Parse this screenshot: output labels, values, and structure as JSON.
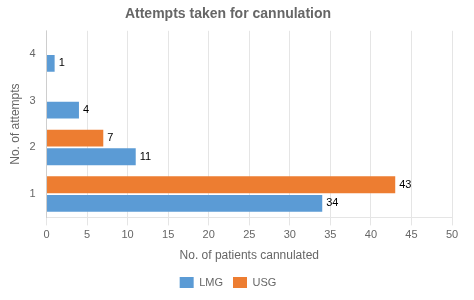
{
  "chart_data": {
    "type": "bar",
    "orientation": "horizontal",
    "title": "Attempts taken for cannulation",
    "xlabel": "No. of patients cannulated",
    "ylabel": "No. of attempts",
    "categories": [
      "1",
      "2",
      "3",
      "4"
    ],
    "series": [
      {
        "name": "USG",
        "color": "#ED7D31",
        "values": [
          43,
          7,
          0,
          0
        ]
      },
      {
        "name": "LMG",
        "color": "#5B9BD5",
        "values": [
          34,
          11,
          4,
          1
        ]
      }
    ],
    "xlim": [
      0,
      50
    ],
    "xticks": [
      0,
      5,
      10,
      15,
      20,
      25,
      30,
      35,
      40,
      45,
      50
    ],
    "grid": true,
    "legend": "bottom",
    "data_labels": true
  }
}
